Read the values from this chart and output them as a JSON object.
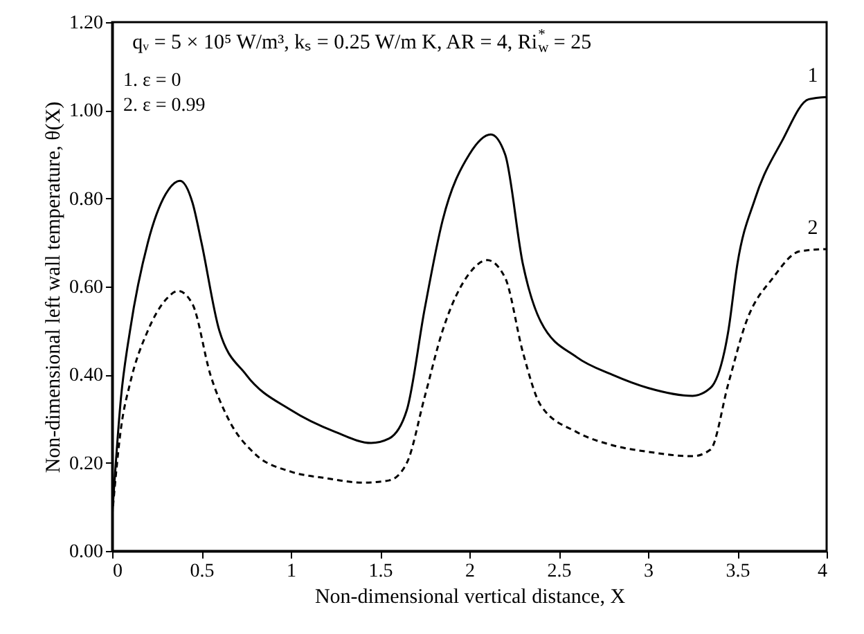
{
  "chart_data": {
    "type": "line",
    "xlabel": "Non-dimensional vertical distance, X",
    "ylabel": "Non-dimensional left wall temperature, θ(X)",
    "annotations": [
      "qᵥ = 5 × 10⁵ W/m³, kₛ = 0.25 W/m K, AR = 4, Ri$_{w}$$^{*}$ = 25",
      "1. ε = 0",
      "2. ε = 0.99"
    ],
    "xlim": [
      0,
      4
    ],
    "xticks": [
      0,
      0.5,
      1,
      1.5,
      2,
      2.5,
      3,
      3.5,
      4
    ],
    "ylim": [
      0,
      1.2
    ],
    "yticks": [
      {
        "value": 0,
        "label": "0.00"
      },
      {
        "value": 0.2,
        "label": "0.20"
      },
      {
        "value": 0.4,
        "label": "0.40"
      },
      {
        "value": 0.6,
        "label": "0.60"
      },
      {
        "value": 0.8,
        "label": "0.80"
      },
      {
        "value": 1,
        "label": "1.00"
      },
      {
        "value": 1.2,
        "label": "1.20"
      }
    ],
    "grid": false,
    "series": [
      {
        "name": "1",
        "color": "#000000",
        "line_style": "solid",
        "x": [
          0,
          0.05,
          0.1,
          0.2,
          0.3,
          0.38,
          0.45,
          0.5,
          0.6,
          0.75,
          1.0,
          1.25,
          1.45,
          1.55,
          1.65,
          1.75,
          1.85,
          2.0,
          2.12,
          2.2,
          2.3,
          2.4,
          2.6,
          2.8,
          3.0,
          3.25,
          3.35,
          3.45,
          3.5,
          3.6,
          3.75,
          3.9,
          4.0
        ],
        "values": [
          0.08,
          0.35,
          0.5,
          0.7,
          0.81,
          0.84,
          0.79,
          0.7,
          0.5,
          0.4,
          0.32,
          0.27,
          0.245,
          0.255,
          0.32,
          0.55,
          0.75,
          0.9,
          0.945,
          0.9,
          0.65,
          0.52,
          0.44,
          0.4,
          0.37,
          0.352,
          0.37,
          0.5,
          0.65,
          0.8,
          0.93,
          1.025,
          1.03
        ]
      },
      {
        "name": "2",
        "color": "#000000",
        "line_style": "dashed",
        "x": [
          0,
          0.05,
          0.1,
          0.2,
          0.3,
          0.37,
          0.45,
          0.55,
          0.65,
          0.8,
          1.0,
          1.2,
          1.4,
          1.55,
          1.65,
          1.75,
          1.85,
          2.0,
          2.1,
          2.2,
          2.3,
          2.4,
          2.6,
          2.8,
          3.0,
          3.25,
          3.35,
          3.45,
          3.55,
          3.7,
          3.85,
          4.0
        ],
        "values": [
          0.08,
          0.28,
          0.38,
          0.5,
          0.57,
          0.59,
          0.56,
          0.4,
          0.3,
          0.22,
          0.18,
          0.165,
          0.155,
          0.16,
          0.2,
          0.35,
          0.5,
          0.63,
          0.66,
          0.62,
          0.45,
          0.33,
          0.27,
          0.24,
          0.225,
          0.215,
          0.23,
          0.38,
          0.52,
          0.62,
          0.68,
          0.685
        ]
      }
    ]
  }
}
